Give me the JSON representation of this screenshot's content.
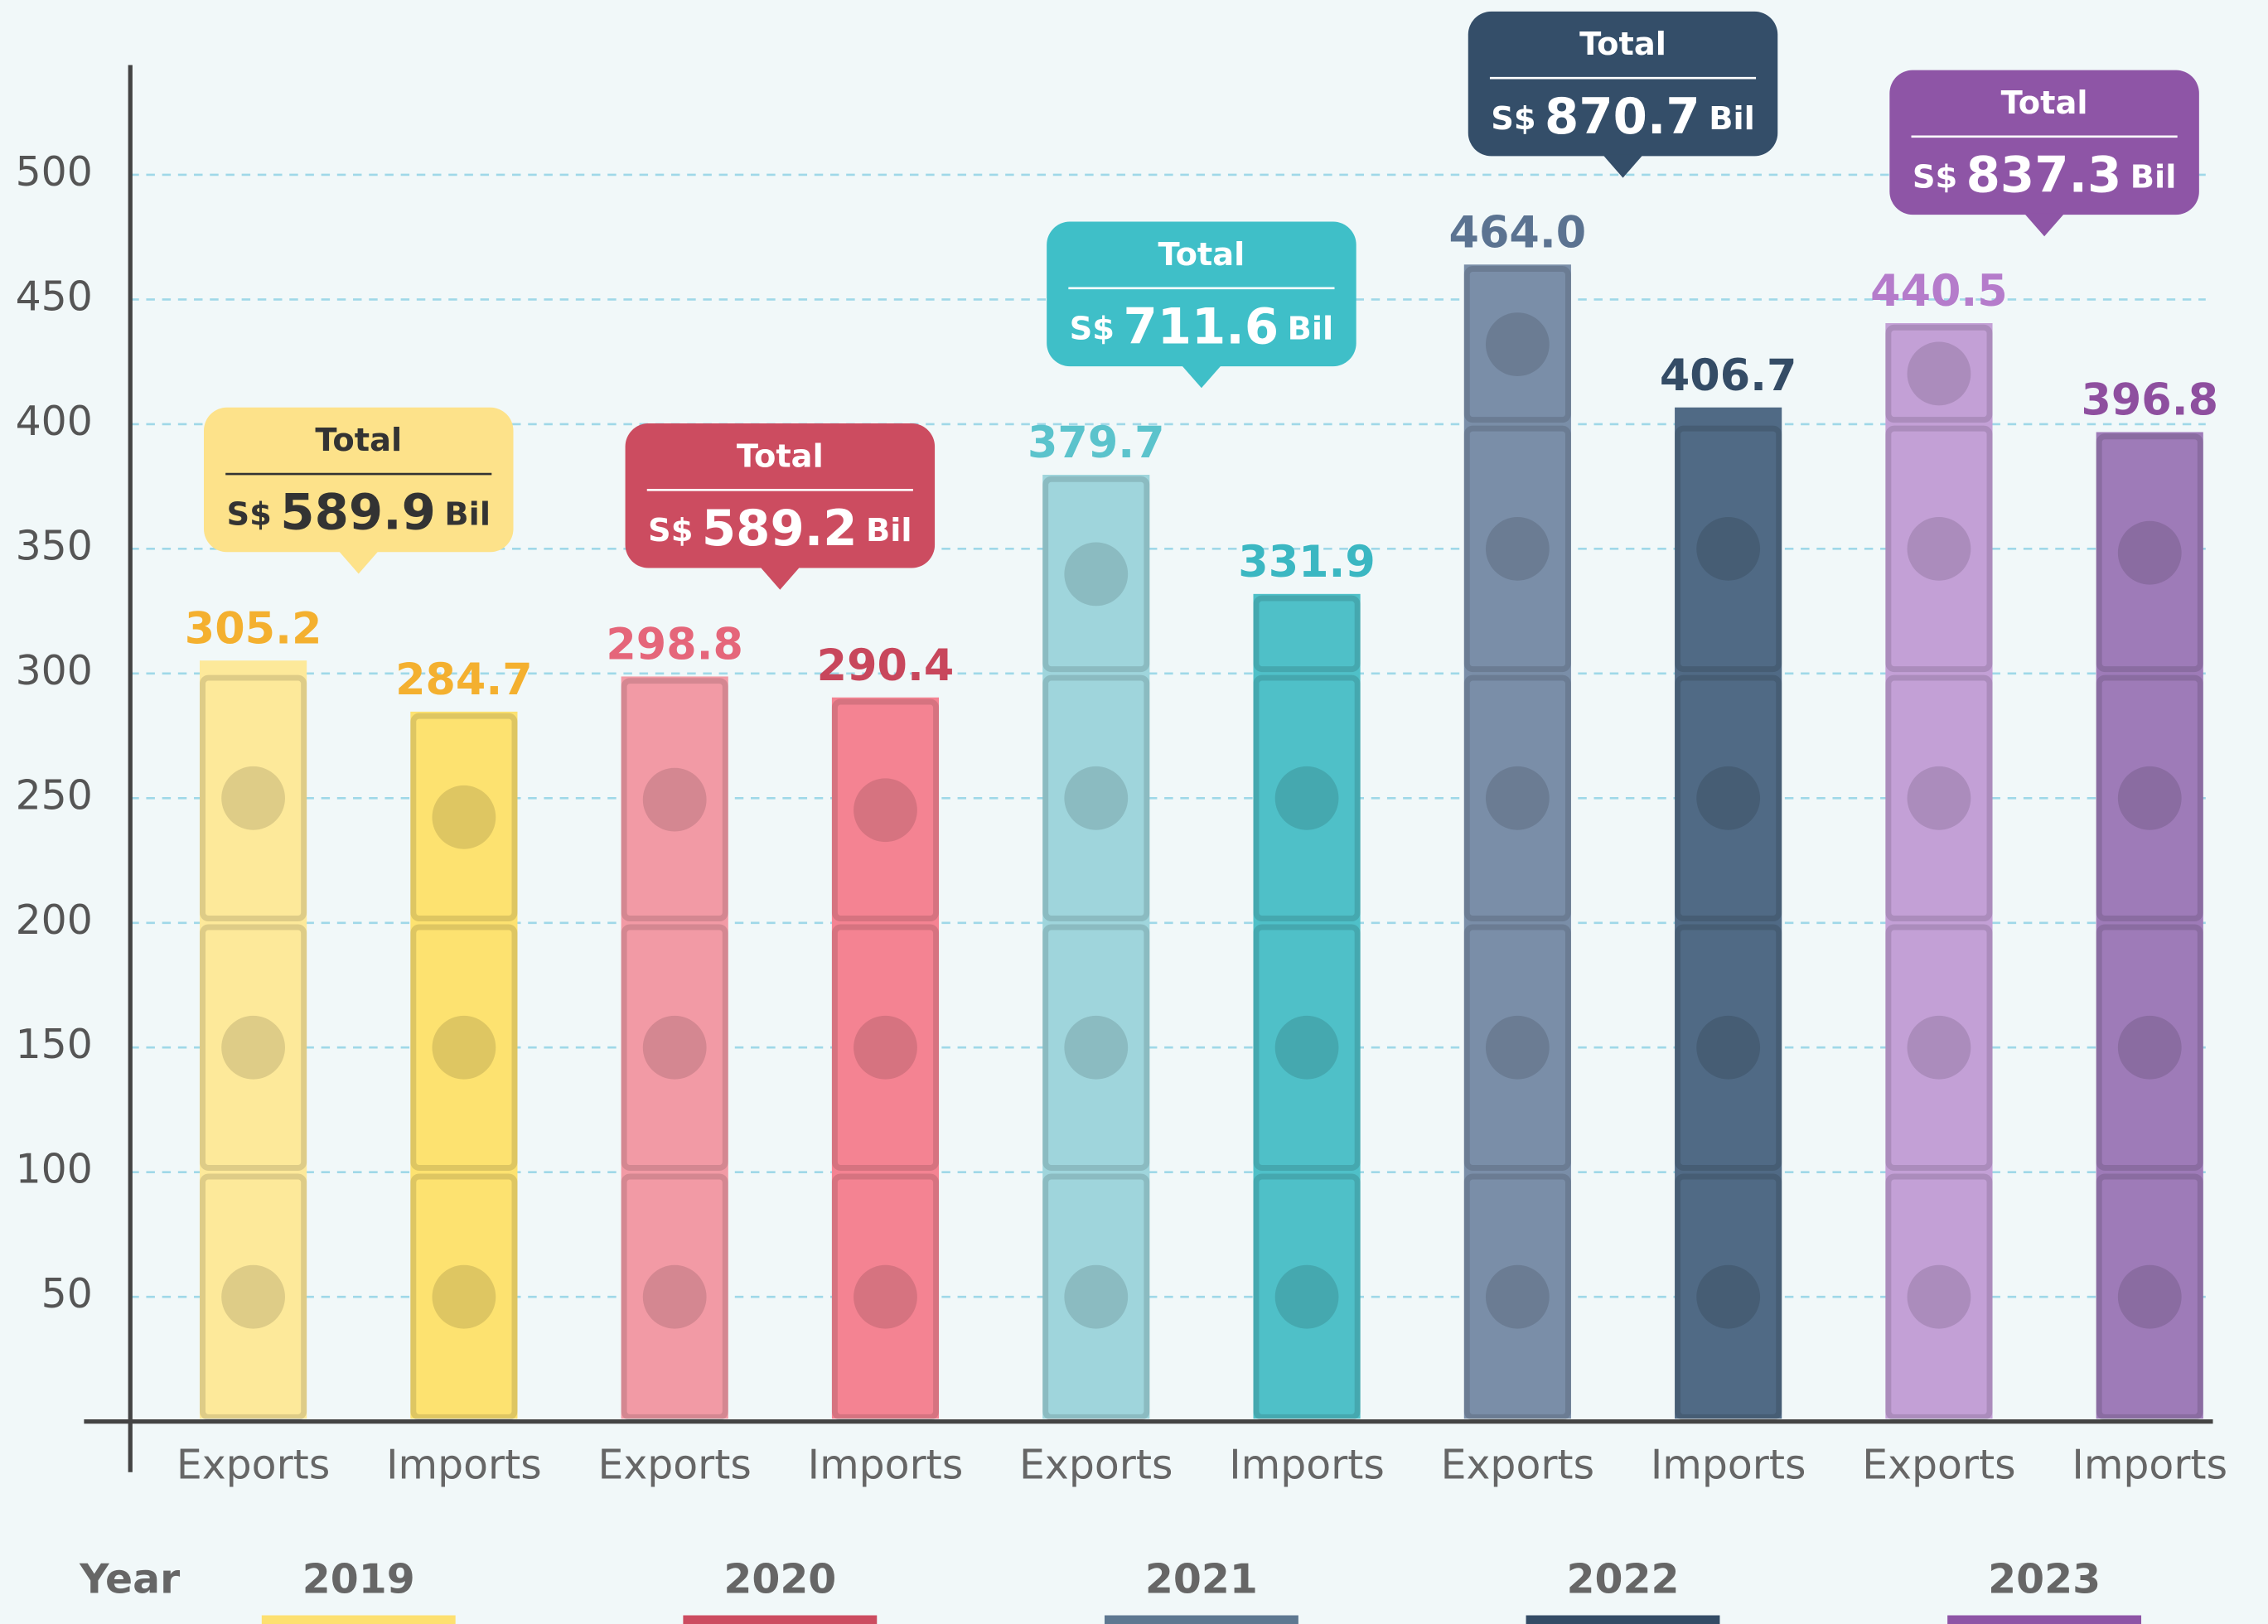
{
  "chart_data": {
    "type": "bar",
    "categories": [
      "Exports",
      "Imports",
      "Exports",
      "Imports",
      "Exports",
      "Imports",
      "Exports",
      "Imports",
      "Exports",
      "Imports"
    ],
    "values": [
      305.2,
      284.7,
      298.8,
      290.4,
      379.7,
      331.9,
      464.0,
      406.7,
      440.5,
      396.8
    ],
    "value_labels": [
      "305.2",
      "284.7",
      "298.8",
      "290.4",
      "379.7",
      "331.9",
      "464.0",
      "406.7",
      "440.5",
      "396.8"
    ],
    "colors": [
      "#fde99a",
      "#fde270",
      "#f29aa5",
      "#f48392",
      "#9fd5dc",
      "#4fc0c8",
      "#7a8ea8",
      "#506a85",
      "#c3a0d6",
      "#9e7bb8"
    ],
    "label_colors": [
      "#f4b02f",
      "#f4b02f",
      "#e5667a",
      "#c8475c",
      "#5bc3cc",
      "#3bb7c2",
      "#5b7391",
      "#344c66",
      "#b57ccb",
      "#8e4f9f"
    ],
    "groups": [
      {
        "name": "2019",
        "total": 589.9,
        "color": "#fde28a",
        "text_color": "#333333",
        "underline": "#fde070"
      },
      {
        "name": "2020",
        "total": 589.2,
        "color": "#cc4c60",
        "text_color": "#ffffff",
        "underline": "#cc4c60"
      },
      {
        "name": "2021",
        "total": 711.6,
        "color": "#3fbfc8",
        "text_color": "#ffffff",
        "underline": "#5e7891"
      },
      {
        "name": "2022",
        "total": 870.7,
        "color": "#344e69",
        "text_color": "#ffffff",
        "underline": "#344c66"
      },
      {
        "name": "2023",
        "total": 837.3,
        "color": "#8e55a6",
        "text_color": "#ffffff",
        "underline": "#8e55a6"
      }
    ],
    "total_label": "Total",
    "currency": "S$",
    "unit": "Bil",
    "x_title": "Year",
    "ylim": [
      0,
      544
    ],
    "yticks": [
      50,
      100,
      150,
      200,
      250,
      300,
      350,
      400,
      450,
      500
    ],
    "grid": true
  }
}
